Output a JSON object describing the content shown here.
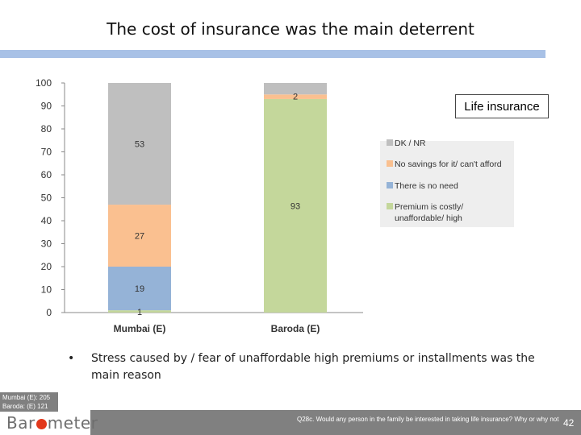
{
  "slide": {
    "title": "The cost of insurance was the main deterrent",
    "callout": "Life insurance",
    "bullet_symbol": "•",
    "bullet": "Stress caused by / fear of unaffordable high premiums or installments was the main reason",
    "base_lines": [
      "Mumbai (E): 205",
      "Baroda: (E) 121"
    ],
    "logo_pre": "Bar",
    "logo_post": "meter",
    "question": "Q28c. Would any person in the family be interested in taking life insurance? Why or why not",
    "page_number": "42"
  },
  "colors": {
    "topbar": "#a8c1e6",
    "footer": "#808080",
    "logo_dot": "#e2381b"
  },
  "chart_data": {
    "type": "bar",
    "stacked": true,
    "categories": [
      "Mumbai (E)",
      "Baroda (E)"
    ],
    "ylim": [
      0,
      100
    ],
    "yticks": [
      0,
      10,
      20,
      30,
      40,
      50,
      60,
      70,
      80,
      90,
      100
    ],
    "grid": false,
    "legend_position": "right",
    "series": [
      {
        "name": "Premium is costly/ unaffordable/ high",
        "color": "#c4d79b",
        "values": [
          1,
          93
        ]
      },
      {
        "name": "There is no need",
        "color": "#95b3d7",
        "values": [
          19,
          0
        ]
      },
      {
        "name": "No savings for it/ can't afford",
        "color": "#fac090",
        "values": [
          27,
          2
        ]
      },
      {
        "name": "DK / NR",
        "color": "#bfbfbf",
        "values": [
          53,
          5
        ]
      }
    ],
    "data_labels": [
      {
        "category": "Mumbai (E)",
        "series": "Premium is costly/ unaffordable/ high",
        "text": "1"
      },
      {
        "category": "Mumbai (E)",
        "series": "There is no need",
        "text": "19"
      },
      {
        "category": "Mumbai (E)",
        "series": "No savings for it/ can't afford",
        "text": "27"
      },
      {
        "category": "Mumbai (E)",
        "series": "DK / NR",
        "text": "53"
      },
      {
        "category": "Baroda (E)",
        "series": "Premium is costly/ unaffordable/ high",
        "text": "93"
      },
      {
        "category": "Baroda (E)",
        "series": "No savings for it/ can't afford",
        "text": "2"
      }
    ]
  }
}
